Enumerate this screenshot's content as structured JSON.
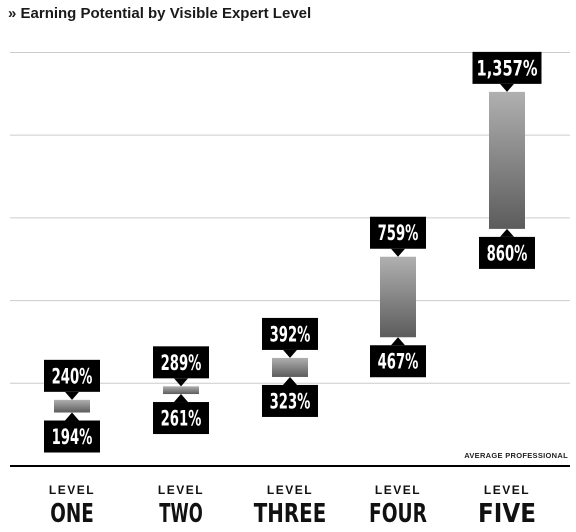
{
  "chart_data": {
    "type": "bar",
    "title": "» Earning Potential by Visible Expert Level",
    "baseline_label": "AVERAGE PROFESSIONAL",
    "categories": [
      {
        "prefix": "LEVEL",
        "name": "ONE"
      },
      {
        "prefix": "LEVEL",
        "name": "TWO"
      },
      {
        "prefix": "LEVEL",
        "name": "THREE"
      },
      {
        "prefix": "LEVEL",
        "name": "FOUR"
      },
      {
        "prefix": "LEVEL",
        "name": "FIVE"
      }
    ],
    "low": [
      194,
      261,
      323,
      467,
      860
    ],
    "high": [
      240,
      289,
      392,
      759,
      1357
    ],
    "low_labels": [
      "194%",
      "261%",
      "323%",
      "467%",
      "860%"
    ],
    "high_labels": [
      "240%",
      "289%",
      "392%",
      "759%",
      "1,357%"
    ],
    "ylim": [
      0,
      1500
    ],
    "grid": true,
    "colors": {
      "bar_top": "#b0b0b0",
      "bar_bottom": "#5c5c5c",
      "label_bg": "#000000",
      "label_text": "#ffffff",
      "grid": "#cccccc",
      "baseline": "#000000"
    }
  }
}
